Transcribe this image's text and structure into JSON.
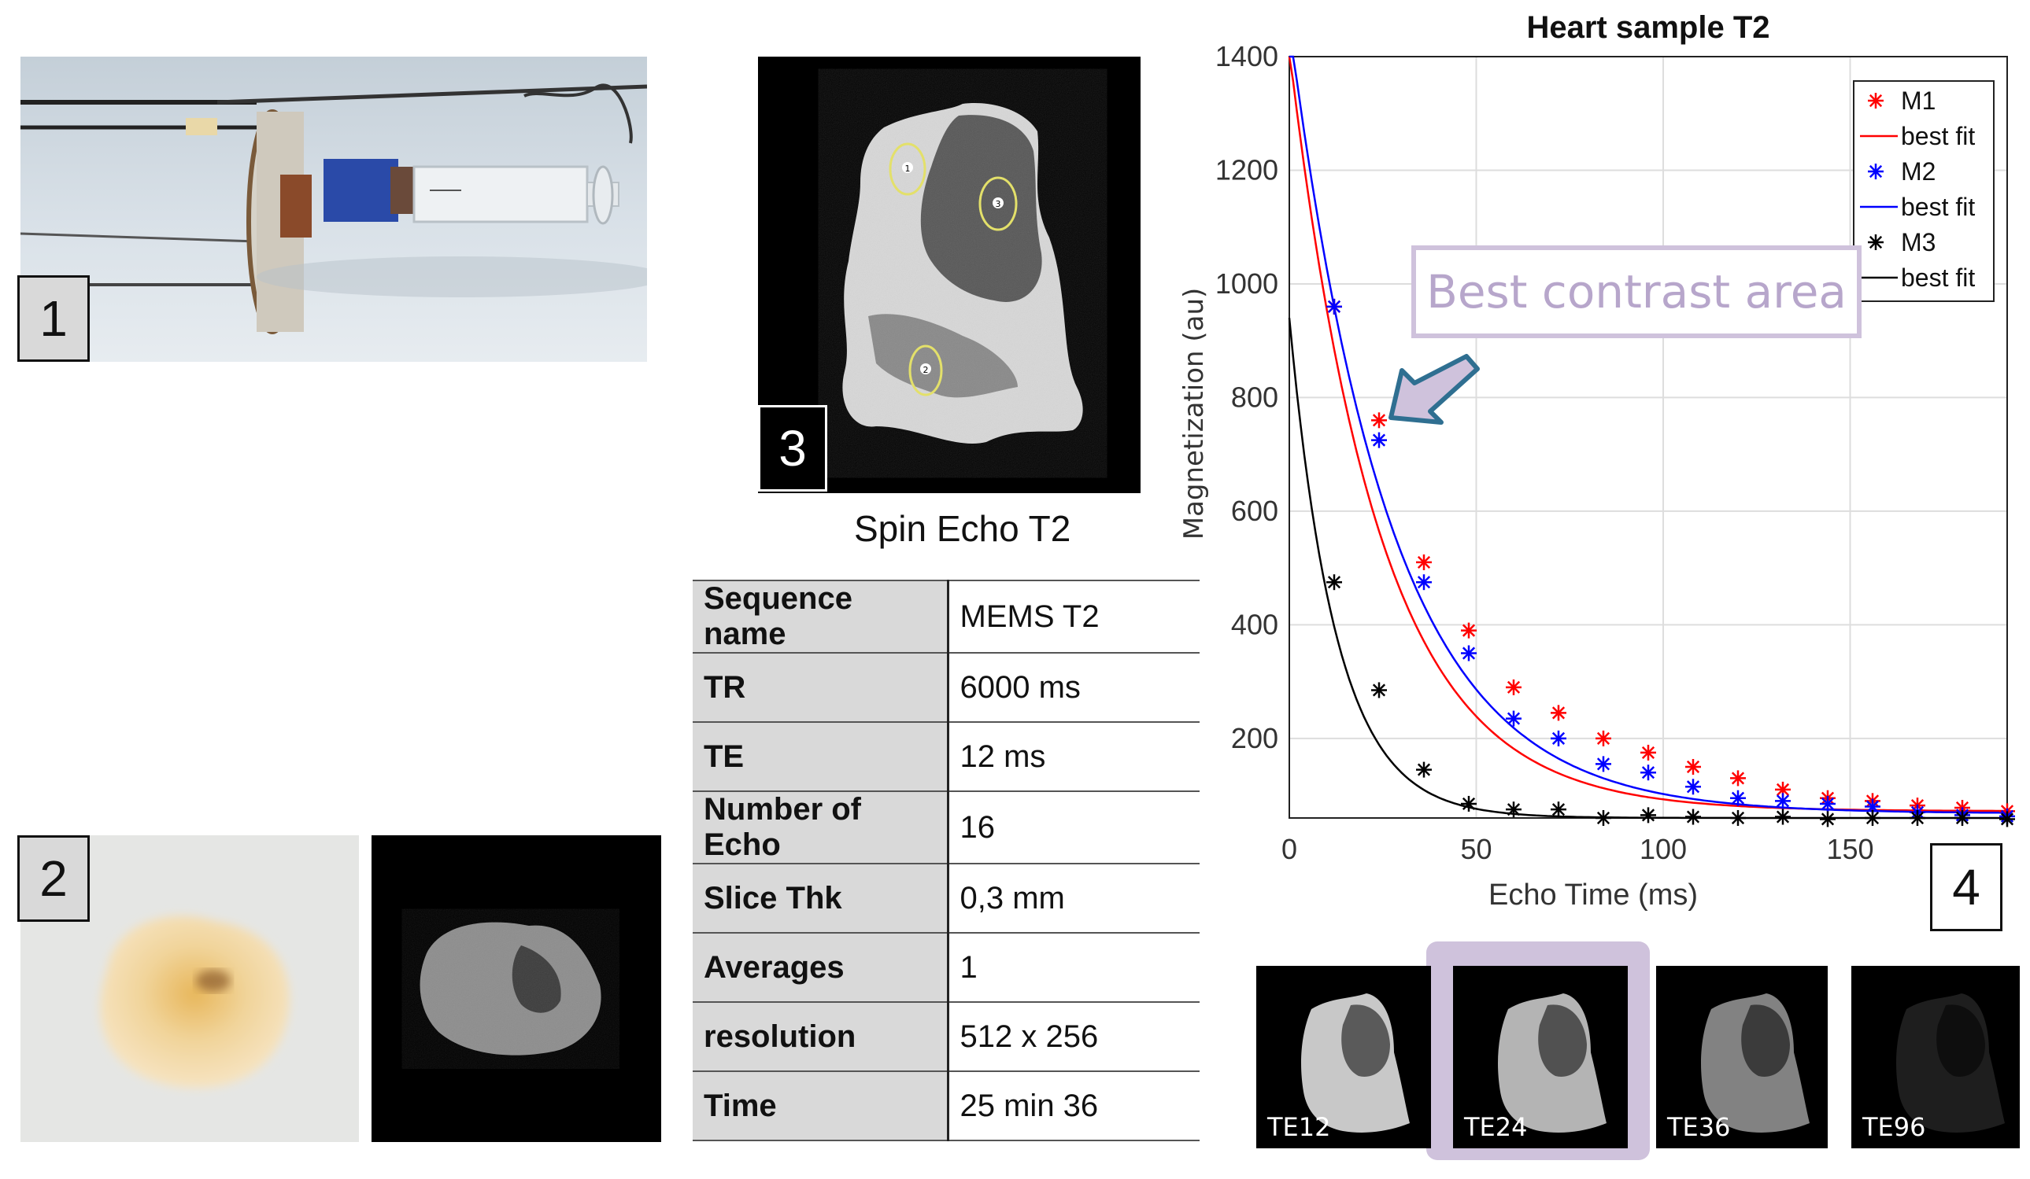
{
  "panels": {
    "p1": {
      "label": "1"
    },
    "p2": {
      "label": "2"
    },
    "p3": {
      "label": "3",
      "caption": "Spin Echo T2"
    },
    "p4": {
      "label": "4"
    }
  },
  "mri_roi_labels": [
    "1",
    "2",
    "3"
  ],
  "sequence_table": [
    {
      "key": "Sequence name",
      "value": "MEMS T2"
    },
    {
      "key": "TR",
      "value": "6000 ms"
    },
    {
      "key": "TE",
      "value": "12 ms"
    },
    {
      "key": "Number of Echo",
      "value": "16"
    },
    {
      "key": "Slice Thk",
      "value": "0,3 mm"
    },
    {
      "key": "Averages",
      "value": "1"
    },
    {
      "key": "resolution",
      "value": "512 x 256"
    },
    {
      "key": "Time",
      "value": "25 min 36"
    }
  ],
  "callout": {
    "text": "Best contrast area",
    "color": "#cfc2dc"
  },
  "echo_thumbnails": [
    {
      "label": "TE12",
      "brightness": 1.0,
      "highlighted": false
    },
    {
      "label": "TE24",
      "brightness": 0.9,
      "highlighted": true
    },
    {
      "label": "TE36",
      "brightness": 0.65,
      "highlighted": false
    },
    {
      "label": "TE96",
      "brightness": 0.15,
      "highlighted": false
    }
  ],
  "chart_data": {
    "type": "scatter",
    "title": "Heart sample T2",
    "xlabel": "Echo Time (ms)",
    "ylabel": "Magnetization (au)",
    "xlim": [
      0,
      192
    ],
    "ylim": [
      60,
      1400
    ],
    "xticks": [
      0,
      50,
      100,
      150
    ],
    "yticks": [
      200,
      400,
      600,
      800,
      1000,
      1200,
      1400
    ],
    "grid": true,
    "legend_position": "top-right",
    "series": [
      {
        "name": "M1",
        "color": "#ff0000",
        "marker": "*",
        "x": [
          12,
          24,
          36,
          48,
          60,
          72,
          84,
          96,
          108,
          120,
          132,
          144,
          156,
          168,
          180,
          192
        ],
        "values": [
          960,
          760,
          510,
          390,
          290,
          245,
          200,
          175,
          150,
          130,
          110,
          95,
          90,
          82,
          78,
          72
        ],
        "fit_name": "best fit",
        "fit": {
          "S0": 1340,
          "T2": 24,
          "C": 72
        }
      },
      {
        "name": "M2",
        "color": "#0000ff",
        "marker": "*",
        "x": [
          12,
          24,
          36,
          48,
          60,
          72,
          84,
          96,
          108,
          120,
          132,
          144,
          156,
          168,
          180,
          192
        ],
        "values": [
          960,
          725,
          475,
          350,
          235,
          200,
          155,
          140,
          115,
          95,
          90,
          85,
          80,
          70,
          65,
          63
        ],
        "fit_name": "best fit",
        "fit": {
          "S0": 1390,
          "T2": 27,
          "C": 68
        }
      },
      {
        "name": "M3",
        "color": "#000000",
        "marker": "*",
        "x": [
          12,
          24,
          36,
          48,
          60,
          72,
          84,
          96,
          108,
          120,
          132,
          144,
          156,
          168,
          180,
          192
        ],
        "values": [
          475,
          285,
          145,
          85,
          75,
          75,
          60,
          65,
          62,
          60,
          62,
          58,
          60,
          60,
          60,
          58
        ],
        "fit_name": "best fit",
        "fit": {
          "S0": 880,
          "T2": 12.5,
          "C": 60
        }
      }
    ]
  }
}
